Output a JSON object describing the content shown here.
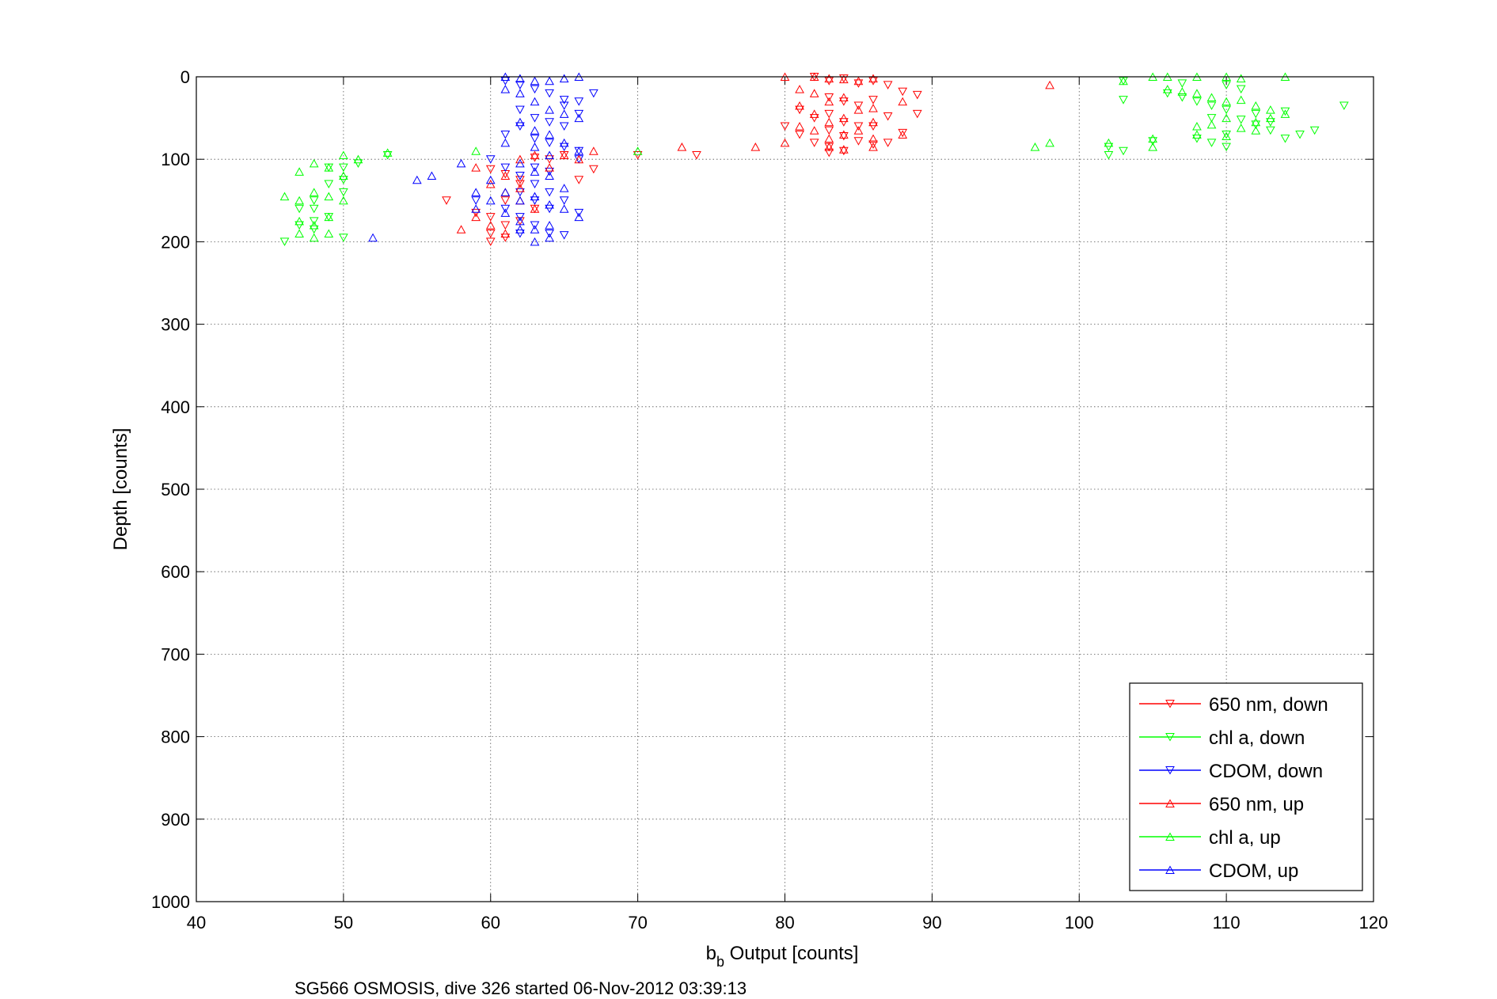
{
  "chart_data": {
    "type": "scatter",
    "xlabel_main": "b",
    "xlabel_sub": "b",
    "xlabel_rest": " Output [counts]",
    "ylabel": "Depth [counts]",
    "caption": "SG566 OSMOSIS, dive 326 started 06-Nov-2012 03:39:13",
    "xlim": [
      40,
      120
    ],
    "ylim": [
      0,
      1000
    ],
    "y_reversed": true,
    "x_ticks": [
      "40",
      "50",
      "60",
      "70",
      "80",
      "90",
      "100",
      "110",
      "120"
    ],
    "y_ticks": [
      "0",
      "100",
      "200",
      "300",
      "400",
      "500",
      "600",
      "700",
      "800",
      "900",
      "1000"
    ],
    "grid": true,
    "legend_position": "bottom-right",
    "series": [
      {
        "name": "650 nm, down",
        "color": "#ff0000",
        "marker": "triangle-down",
        "points": [
          [
            82,
            0
          ],
          [
            83,
            5
          ],
          [
            84,
            2
          ],
          [
            85,
            8
          ],
          [
            86,
            5
          ],
          [
            87,
            10
          ],
          [
            88,
            18
          ],
          [
            89,
            22
          ],
          [
            83,
            25
          ],
          [
            84,
            30
          ],
          [
            85,
            35
          ],
          [
            86,
            28
          ],
          [
            81,
            40
          ],
          [
            82,
            50
          ],
          [
            83,
            45
          ],
          [
            84,
            55
          ],
          [
            85,
            60
          ],
          [
            87,
            48
          ],
          [
            89,
            45
          ],
          [
            80,
            60
          ],
          [
            81,
            70
          ],
          [
            83,
            65
          ],
          [
            84,
            72
          ],
          [
            86,
            60
          ],
          [
            88,
            68
          ],
          [
            82,
            80
          ],
          [
            83,
            85
          ],
          [
            84,
            90
          ],
          [
            85,
            78
          ],
          [
            86,
            82
          ],
          [
            87,
            80
          ],
          [
            83,
            92
          ],
          [
            70,
            95
          ],
          [
            74,
            95
          ],
          [
            60,
            112
          ],
          [
            61,
            118
          ],
          [
            62,
            125
          ],
          [
            59,
            165
          ],
          [
            60,
            170
          ],
          [
            61,
            180
          ],
          [
            62,
            175
          ],
          [
            63,
            160
          ],
          [
            60,
            190
          ],
          [
            61,
            195
          ],
          [
            60,
            200
          ],
          [
            57,
            150
          ],
          [
            66,
            125
          ],
          [
            67,
            112
          ],
          [
            65,
            95
          ],
          [
            64,
            100
          ],
          [
            63,
            98
          ],
          [
            62,
            130
          ],
          [
            61,
            150
          ]
        ]
      },
      {
        "name": "chl a, down",
        "color": "#00ff00",
        "marker": "triangle-down",
        "points": [
          [
            103,
            5
          ],
          [
            107,
            8
          ],
          [
            110,
            10
          ],
          [
            111,
            15
          ],
          [
            106,
            20
          ],
          [
            107,
            25
          ],
          [
            103,
            28
          ],
          [
            108,
            30
          ],
          [
            109,
            35
          ],
          [
            110,
            40
          ],
          [
            112,
            45
          ],
          [
            114,
            42
          ],
          [
            118,
            35
          ],
          [
            109,
            50
          ],
          [
            111,
            52
          ],
          [
            113,
            55
          ],
          [
            112,
            58
          ],
          [
            113,
            65
          ],
          [
            110,
            70
          ],
          [
            108,
            75
          ],
          [
            105,
            78
          ],
          [
            102,
            85
          ],
          [
            103,
            90
          ],
          [
            102,
            95
          ],
          [
            110,
            85
          ],
          [
            109,
            80
          ],
          [
            115,
            70
          ],
          [
            116,
            65
          ],
          [
            114,
            75
          ],
          [
            48,
            150
          ],
          [
            48,
            160
          ],
          [
            49,
            170
          ],
          [
            47,
            180
          ],
          [
            48,
            185
          ],
          [
            50,
            195
          ],
          [
            46,
            200
          ],
          [
            49,
            130
          ],
          [
            50,
            140
          ],
          [
            50,
            125
          ],
          [
            51,
            105
          ],
          [
            53,
            95
          ],
          [
            47,
            160
          ],
          [
            49,
            110
          ],
          [
            50,
            110
          ],
          [
            48,
            175
          ]
        ]
      },
      {
        "name": "CDOM, down",
        "color": "#0000ff",
        "marker": "triangle-down",
        "points": [
          [
            61,
            5
          ],
          [
            62,
            10
          ],
          [
            63,
            15
          ],
          [
            64,
            20
          ],
          [
            65,
            28
          ],
          [
            66,
            30
          ],
          [
            67,
            20
          ],
          [
            62,
            40
          ],
          [
            63,
            50
          ],
          [
            64,
            55
          ],
          [
            65,
            35
          ],
          [
            61,
            70
          ],
          [
            62,
            60
          ],
          [
            63,
            75
          ],
          [
            64,
            80
          ],
          [
            65,
            85
          ],
          [
            66,
            90
          ],
          [
            60,
            100
          ],
          [
            61,
            110
          ],
          [
            62,
            120
          ],
          [
            63,
            130
          ],
          [
            64,
            140
          ],
          [
            65,
            150
          ],
          [
            66,
            165
          ],
          [
            61,
            160
          ],
          [
            62,
            170
          ],
          [
            63,
            180
          ],
          [
            64,
            190
          ],
          [
            65,
            192
          ],
          [
            59,
            150
          ],
          [
            62,
            140
          ],
          [
            63,
            150
          ],
          [
            64,
            160
          ],
          [
            62,
            190
          ],
          [
            63,
            110
          ],
          [
            64,
            115
          ],
          [
            66,
            100
          ],
          [
            65,
            60
          ],
          [
            66,
            45
          ]
        ]
      },
      {
        "name": "650 nm, up",
        "color": "#ff0000",
        "marker": "triangle-up",
        "points": [
          [
            80,
            0
          ],
          [
            82,
            0
          ],
          [
            83,
            2
          ],
          [
            84,
            3
          ],
          [
            85,
            5
          ],
          [
            86,
            2
          ],
          [
            81,
            15
          ],
          [
            82,
            20
          ],
          [
            83,
            30
          ],
          [
            84,
            25
          ],
          [
            85,
            40
          ],
          [
            86,
            38
          ],
          [
            88,
            30
          ],
          [
            81,
            35
          ],
          [
            82,
            45
          ],
          [
            83,
            55
          ],
          [
            84,
            50
          ],
          [
            85,
            65
          ],
          [
            86,
            55
          ],
          [
            81,
            60
          ],
          [
            82,
            65
          ],
          [
            83,
            75
          ],
          [
            84,
            70
          ],
          [
            86,
            75
          ],
          [
            88,
            70
          ],
          [
            80,
            80
          ],
          [
            83,
            85
          ],
          [
            84,
            88
          ],
          [
            86,
            85
          ],
          [
            78,
            85
          ],
          [
            73,
            85
          ],
          [
            98,
            10
          ],
          [
            59,
            110
          ],
          [
            60,
            130
          ],
          [
            61,
            140
          ],
          [
            62,
            150
          ],
          [
            63,
            160
          ],
          [
            59,
            170
          ],
          [
            60,
            180
          ],
          [
            61,
            190
          ],
          [
            58,
            185
          ],
          [
            62,
            100
          ],
          [
            63,
            95
          ],
          [
            64,
            110
          ],
          [
            67,
            90
          ],
          [
            65,
            95
          ],
          [
            66,
            100
          ],
          [
            61,
            120
          ],
          [
            62,
            135
          ]
        ]
      },
      {
        "name": "chl a, up",
        "color": "#00ff00",
        "marker": "triangle-up",
        "points": [
          [
            105,
            0
          ],
          [
            106,
            0
          ],
          [
            108,
            0
          ],
          [
            110,
            0
          ],
          [
            111,
            2
          ],
          [
            114,
            0
          ],
          [
            103,
            5
          ],
          [
            106,
            15
          ],
          [
            107,
            18
          ],
          [
            108,
            20
          ],
          [
            109,
            25
          ],
          [
            110,
            30
          ],
          [
            111,
            28
          ],
          [
            112,
            35
          ],
          [
            113,
            40
          ],
          [
            114,
            45
          ],
          [
            110,
            50
          ],
          [
            112,
            55
          ],
          [
            113,
            50
          ],
          [
            108,
            60
          ],
          [
            109,
            58
          ],
          [
            111,
            62
          ],
          [
            112,
            65
          ],
          [
            108,
            70
          ],
          [
            110,
            72
          ],
          [
            102,
            80
          ],
          [
            105,
            75
          ],
          [
            97,
            85
          ],
          [
            98,
            80
          ],
          [
            105,
            85
          ],
          [
            59,
            90
          ],
          [
            70,
            90
          ],
          [
            47,
            115
          ],
          [
            48,
            105
          ],
          [
            49,
            110
          ],
          [
            50,
            95
          ],
          [
            51,
            100
          ],
          [
            53,
            92
          ],
          [
            46,
            145
          ],
          [
            47,
            150
          ],
          [
            48,
            140
          ],
          [
            49,
            145
          ],
          [
            50,
            150
          ],
          [
            47,
            175
          ],
          [
            48,
            180
          ],
          [
            49,
            190
          ],
          [
            47,
            190
          ],
          [
            48,
            195
          ],
          [
            49,
            170
          ],
          [
            50,
            120
          ]
        ]
      },
      {
        "name": "CDOM, up",
        "color": "#0000ff",
        "marker": "triangle-up",
        "points": [
          [
            61,
            0
          ],
          [
            62,
            2
          ],
          [
            63,
            5
          ],
          [
            64,
            5
          ],
          [
            65,
            2
          ],
          [
            66,
            0
          ],
          [
            61,
            15
          ],
          [
            62,
            20
          ],
          [
            63,
            30
          ],
          [
            64,
            40
          ],
          [
            65,
            45
          ],
          [
            66,
            50
          ],
          [
            62,
            55
          ],
          [
            63,
            65
          ],
          [
            64,
            70
          ],
          [
            65,
            80
          ],
          [
            66,
            90
          ],
          [
            61,
            80
          ],
          [
            63,
            85
          ],
          [
            64,
            95
          ],
          [
            62,
            105
          ],
          [
            63,
            115
          ],
          [
            64,
            120
          ],
          [
            65,
            135
          ],
          [
            60,
            125
          ],
          [
            61,
            140
          ],
          [
            62,
            150
          ],
          [
            63,
            145
          ],
          [
            64,
            155
          ],
          [
            65,
            160
          ],
          [
            66,
            170
          ],
          [
            59,
            140
          ],
          [
            61,
            165
          ],
          [
            62,
            175
          ],
          [
            63,
            185
          ],
          [
            64,
            195
          ],
          [
            62,
            185
          ],
          [
            58,
            105
          ],
          [
            55,
            125
          ],
          [
            56,
            120
          ],
          [
            52,
            195
          ],
          [
            60,
            150
          ],
          [
            59,
            160
          ],
          [
            64,
            180
          ],
          [
            63,
            200
          ]
        ]
      }
    ]
  }
}
